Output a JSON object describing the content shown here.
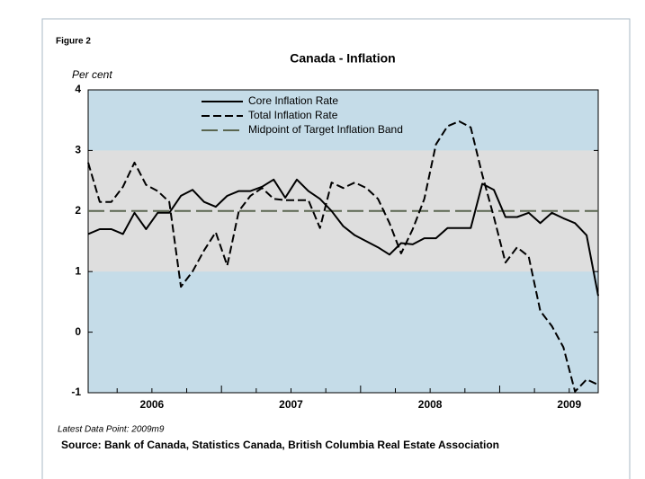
{
  "chart_data": {
    "type": "line",
    "figure_label": "Figure 2",
    "title": "Canada - Inflation",
    "y_axis_label": "Per cent",
    "note": "Latest Data Point: 2009m9",
    "source": "Source: Bank of Canada, Statistics Canada, British Columbia Real Estate Association",
    "categories": [
      "2006",
      null,
      null,
      null,
      null,
      null,
      null,
      null,
      null,
      null,
      null,
      null,
      "2007",
      null,
      null,
      null,
      null,
      null,
      null,
      null,
      null,
      null,
      null,
      null,
      "2008",
      null,
      null,
      null,
      null,
      null,
      null,
      null,
      null,
      null,
      null,
      null,
      "2009",
      null,
      null,
      null,
      null,
      null,
      null,
      null,
      null
    ],
    "series": [
      {
        "name": "Core Inflation Rate",
        "color": "#000000",
        "dash": "solid",
        "values": [
          1.62,
          1.7,
          1.7,
          1.62,
          1.97,
          1.7,
          1.97,
          1.97,
          2.25,
          2.35,
          2.15,
          2.07,
          2.25,
          2.33,
          2.33,
          2.4,
          2.52,
          2.22,
          2.52,
          2.33,
          2.2,
          2.0,
          1.75,
          1.6,
          1.5,
          1.4,
          1.28,
          1.47,
          1.45,
          1.55,
          1.55,
          1.72,
          1.72,
          1.72,
          2.45,
          2.35,
          1.9,
          1.9,
          1.97,
          1.8,
          1.97,
          1.88,
          1.8,
          1.6,
          0.6
        ]
      },
      {
        "name": "Total Inflation Rate",
        "color": "#000000",
        "dash": "dashed",
        "values": [
          2.8,
          2.15,
          2.15,
          2.4,
          2.8,
          2.43,
          2.33,
          2.15,
          0.75,
          1.0,
          1.35,
          1.65,
          1.1,
          2.0,
          2.25,
          2.38,
          2.2,
          2.18,
          2.18,
          2.18,
          1.72,
          2.47,
          2.38,
          2.47,
          2.38,
          2.2,
          1.8,
          1.3,
          1.7,
          2.2,
          3.1,
          3.4,
          3.48,
          3.38,
          2.6,
          1.9,
          1.15,
          1.4,
          1.25,
          0.35,
          0.1,
          -0.25,
          -0.98,
          -0.78,
          -0.87
        ]
      },
      {
        "name": "Midpoint of Target Inflation Band",
        "color": "#5a6650",
        "dash": "longdash",
        "values": [
          2,
          2,
          2,
          2,
          2,
          2,
          2,
          2,
          2,
          2,
          2,
          2,
          2,
          2,
          2,
          2,
          2,
          2,
          2,
          2,
          2,
          2,
          2,
          2,
          2,
          2,
          2,
          2,
          2,
          2,
          2,
          2,
          2,
          2,
          2,
          2,
          2,
          2,
          2,
          2,
          2,
          2,
          2,
          2,
          2
        ]
      }
    ],
    "target_band": [
      1,
      3
    ],
    "ylim": [
      -1,
      4
    ],
    "yticks": [
      -1,
      0,
      1,
      2,
      3,
      4
    ],
    "background_color": "#c5dce8",
    "band_color": "#dedede"
  }
}
